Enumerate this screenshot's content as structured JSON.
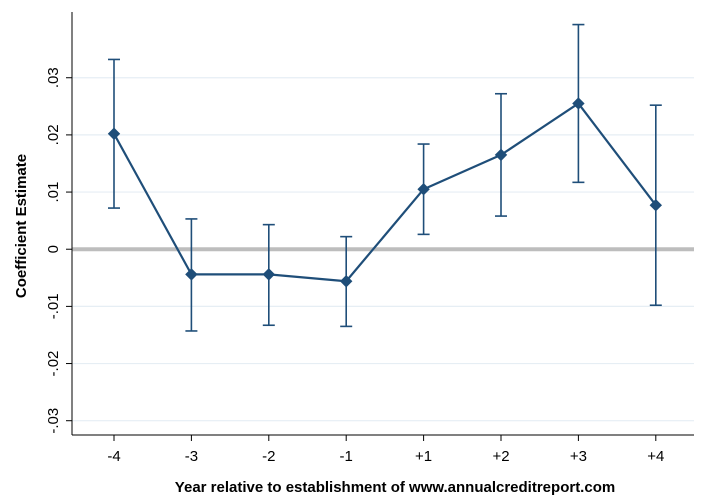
{
  "chart_data": {
    "type": "line",
    "title": "",
    "xlabel": "Year relative to establishment of www.annualcreditreport.com",
    "ylabel": "Coefficient Estimate",
    "categories": [
      "-4",
      "-3",
      "-2",
      "-1",
      "+1",
      "+2",
      "+3",
      "+4"
    ],
    "series": [
      {
        "values": [
          0.0202,
          -0.0044,
          -0.0044,
          -0.0056,
          0.0105,
          0.0165,
          0.0255,
          0.0077
        ],
        "ci_low": [
          0.0072,
          -0.0143,
          -0.0133,
          -0.0135,
          0.0026,
          0.0058,
          0.0117,
          -0.0098
        ],
        "ci_high": [
          0.0332,
          0.0053,
          0.0043,
          0.0022,
          0.0184,
          0.0272,
          0.0393,
          0.0252
        ]
      }
    ],
    "yticks": [
      {
        "value": 0.03,
        "label": ".03"
      },
      {
        "value": 0.02,
        "label": ".02"
      },
      {
        "value": 0.01,
        "label": ".01"
      },
      {
        "value": 0,
        "label": "0"
      },
      {
        "value": -0.01,
        "label": "-.01"
      },
      {
        "value": -0.02,
        "label": "-.02"
      },
      {
        "value": -0.03,
        "label": "-.03"
      }
    ],
    "ylim": [
      -0.0325,
      0.0415
    ],
    "reference_line": 0,
    "grid": true,
    "colors": {
      "series": "#1f4e79",
      "grid": "#e6eef4",
      "reference": "#bdbdbd",
      "axis": "#000000"
    }
  }
}
